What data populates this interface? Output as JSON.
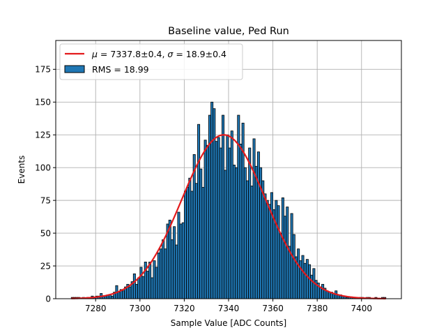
{
  "chart_data": {
    "type": "bar",
    "title": "Baseline value, Ped Run",
    "xlabel": "Sample Value [ADC Counts]",
    "ylabel": "Events",
    "xlim": [
      7262,
      7418
    ],
    "ylim": [
      0,
      197
    ],
    "x_ticks": [
      7280,
      7300,
      7320,
      7340,
      7360,
      7380,
      7400
    ],
    "y_ticks": [
      0,
      25,
      50,
      75,
      100,
      125,
      150,
      175
    ],
    "grid": true,
    "legend_position": "top-left",
    "bin_width": 1,
    "histogram": {
      "name": "RMS = 18.99",
      "color": "#1f77b4",
      "bins": [
        [
          7269,
          1
        ],
        [
          7270,
          1
        ],
        [
          7271,
          1
        ],
        [
          7272,
          1
        ],
        [
          7273,
          0
        ],
        [
          7274,
          1
        ],
        [
          7275,
          0
        ],
        [
          7276,
          1
        ],
        [
          7277,
          1
        ],
        [
          7278,
          2
        ],
        [
          7279,
          1
        ],
        [
          7280,
          2
        ],
        [
          7281,
          2
        ],
        [
          7282,
          4
        ],
        [
          7283,
          2
        ],
        [
          7284,
          2
        ],
        [
          7285,
          3
        ],
        [
          7286,
          3
        ],
        [
          7287,
          2
        ],
        [
          7288,
          5
        ],
        [
          7289,
          10
        ],
        [
          7290,
          5
        ],
        [
          7291,
          7
        ],
        [
          7292,
          6
        ],
        [
          7293,
          9
        ],
        [
          7294,
          11
        ],
        [
          7295,
          9
        ],
        [
          7296,
          13
        ],
        [
          7297,
          19
        ],
        [
          7298,
          11
        ],
        [
          7299,
          16
        ],
        [
          7300,
          24
        ],
        [
          7301,
          17
        ],
        [
          7302,
          28
        ],
        [
          7303,
          21
        ],
        [
          7304,
          28
        ],
        [
          7305,
          16
        ],
        [
          7306,
          29
        ],
        [
          7307,
          24
        ],
        [
          7308,
          35
        ],
        [
          7309,
          38
        ],
        [
          7310,
          45
        ],
        [
          7311,
          38
        ],
        [
          7312,
          57
        ],
        [
          7313,
          60
        ],
        [
          7314,
          45
        ],
        [
          7315,
          55
        ],
        [
          7316,
          41
        ],
        [
          7317,
          66
        ],
        [
          7318,
          57
        ],
        [
          7319,
          58
        ],
        [
          7320,
          82
        ],
        [
          7321,
          85
        ],
        [
          7322,
          92
        ],
        [
          7323,
          82
        ],
        [
          7324,
          110
        ],
        [
          7325,
          88
        ],
        [
          7326,
          133
        ],
        [
          7327,
          99
        ],
        [
          7328,
          85
        ],
        [
          7329,
          121
        ],
        [
          7330,
          117
        ],
        [
          7331,
          140
        ],
        [
          7332,
          150
        ],
        [
          7333,
          145
        ],
        [
          7334,
          120
        ],
        [
          7335,
          123
        ],
        [
          7336,
          115
        ],
        [
          7337,
          140
        ],
        [
          7338,
          98
        ],
        [
          7339,
          125
        ],
        [
          7340,
          115
        ],
        [
          7341,
          128
        ],
        [
          7342,
          102
        ],
        [
          7343,
          100
        ],
        [
          7344,
          140
        ],
        [
          7345,
          118
        ],
        [
          7346,
          134
        ],
        [
          7347,
          100
        ],
        [
          7348,
          90
        ],
        [
          7349,
          115
        ],
        [
          7350,
          86
        ],
        [
          7351,
          122
        ],
        [
          7352,
          101
        ],
        [
          7353,
          112
        ],
        [
          7354,
          100
        ],
        [
          7355,
          90
        ],
        [
          7356,
          80
        ],
        [
          7357,
          75
        ],
        [
          7358,
          72
        ],
        [
          7359,
          81
        ],
        [
          7360,
          68
        ],
        [
          7361,
          75
        ],
        [
          7362,
          71
        ],
        [
          7363,
          50
        ],
        [
          7364,
          77
        ],
        [
          7365,
          63
        ],
        [
          7366,
          70
        ],
        [
          7367,
          40
        ],
        [
          7368,
          65
        ],
        [
          7369,
          49
        ],
        [
          7370,
          32
        ],
        [
          7371,
          38
        ],
        [
          7372,
          29
        ],
        [
          7373,
          33
        ],
        [
          7374,
          27
        ],
        [
          7375,
          30
        ],
        [
          7376,
          26
        ],
        [
          7377,
          18
        ],
        [
          7378,
          23
        ],
        [
          7379,
          14
        ],
        [
          7380,
          12
        ],
        [
          7381,
          9
        ],
        [
          7382,
          11
        ],
        [
          7383,
          8
        ],
        [
          7384,
          6
        ],
        [
          7385,
          5
        ],
        [
          7386,
          5
        ],
        [
          7387,
          4
        ],
        [
          7388,
          6
        ],
        [
          7389,
          3
        ],
        [
          7390,
          3
        ],
        [
          7391,
          2
        ],
        [
          7392,
          2
        ],
        [
          7393,
          1
        ],
        [
          7394,
          1
        ],
        [
          7395,
          1
        ],
        [
          7396,
          1
        ],
        [
          7397,
          1
        ],
        [
          7398,
          0
        ],
        [
          7399,
          1
        ],
        [
          7400,
          1
        ],
        [
          7401,
          0
        ],
        [
          7402,
          1
        ],
        [
          7403,
          1
        ],
        [
          7404,
          0
        ],
        [
          7405,
          0
        ],
        [
          7406,
          1
        ],
        [
          7407,
          0
        ],
        [
          7408,
          0
        ],
        [
          7409,
          1
        ],
        [
          7410,
          1
        ]
      ]
    },
    "fit": {
      "type": "gaussian",
      "legend_parts": [
        "μ",
        " = 7337.8±0.4, ",
        "σ",
        " = 18.9±0.4"
      ],
      "mu": 7337.8,
      "sigma": 18.9,
      "amplitude": 125,
      "x_range": [
        7269,
        7411
      ],
      "color": "#e31a1c"
    },
    "colors": {
      "bar_edge": "#000000",
      "grid": "#b0b0b0",
      "legend_border": "#cccccc"
    }
  }
}
